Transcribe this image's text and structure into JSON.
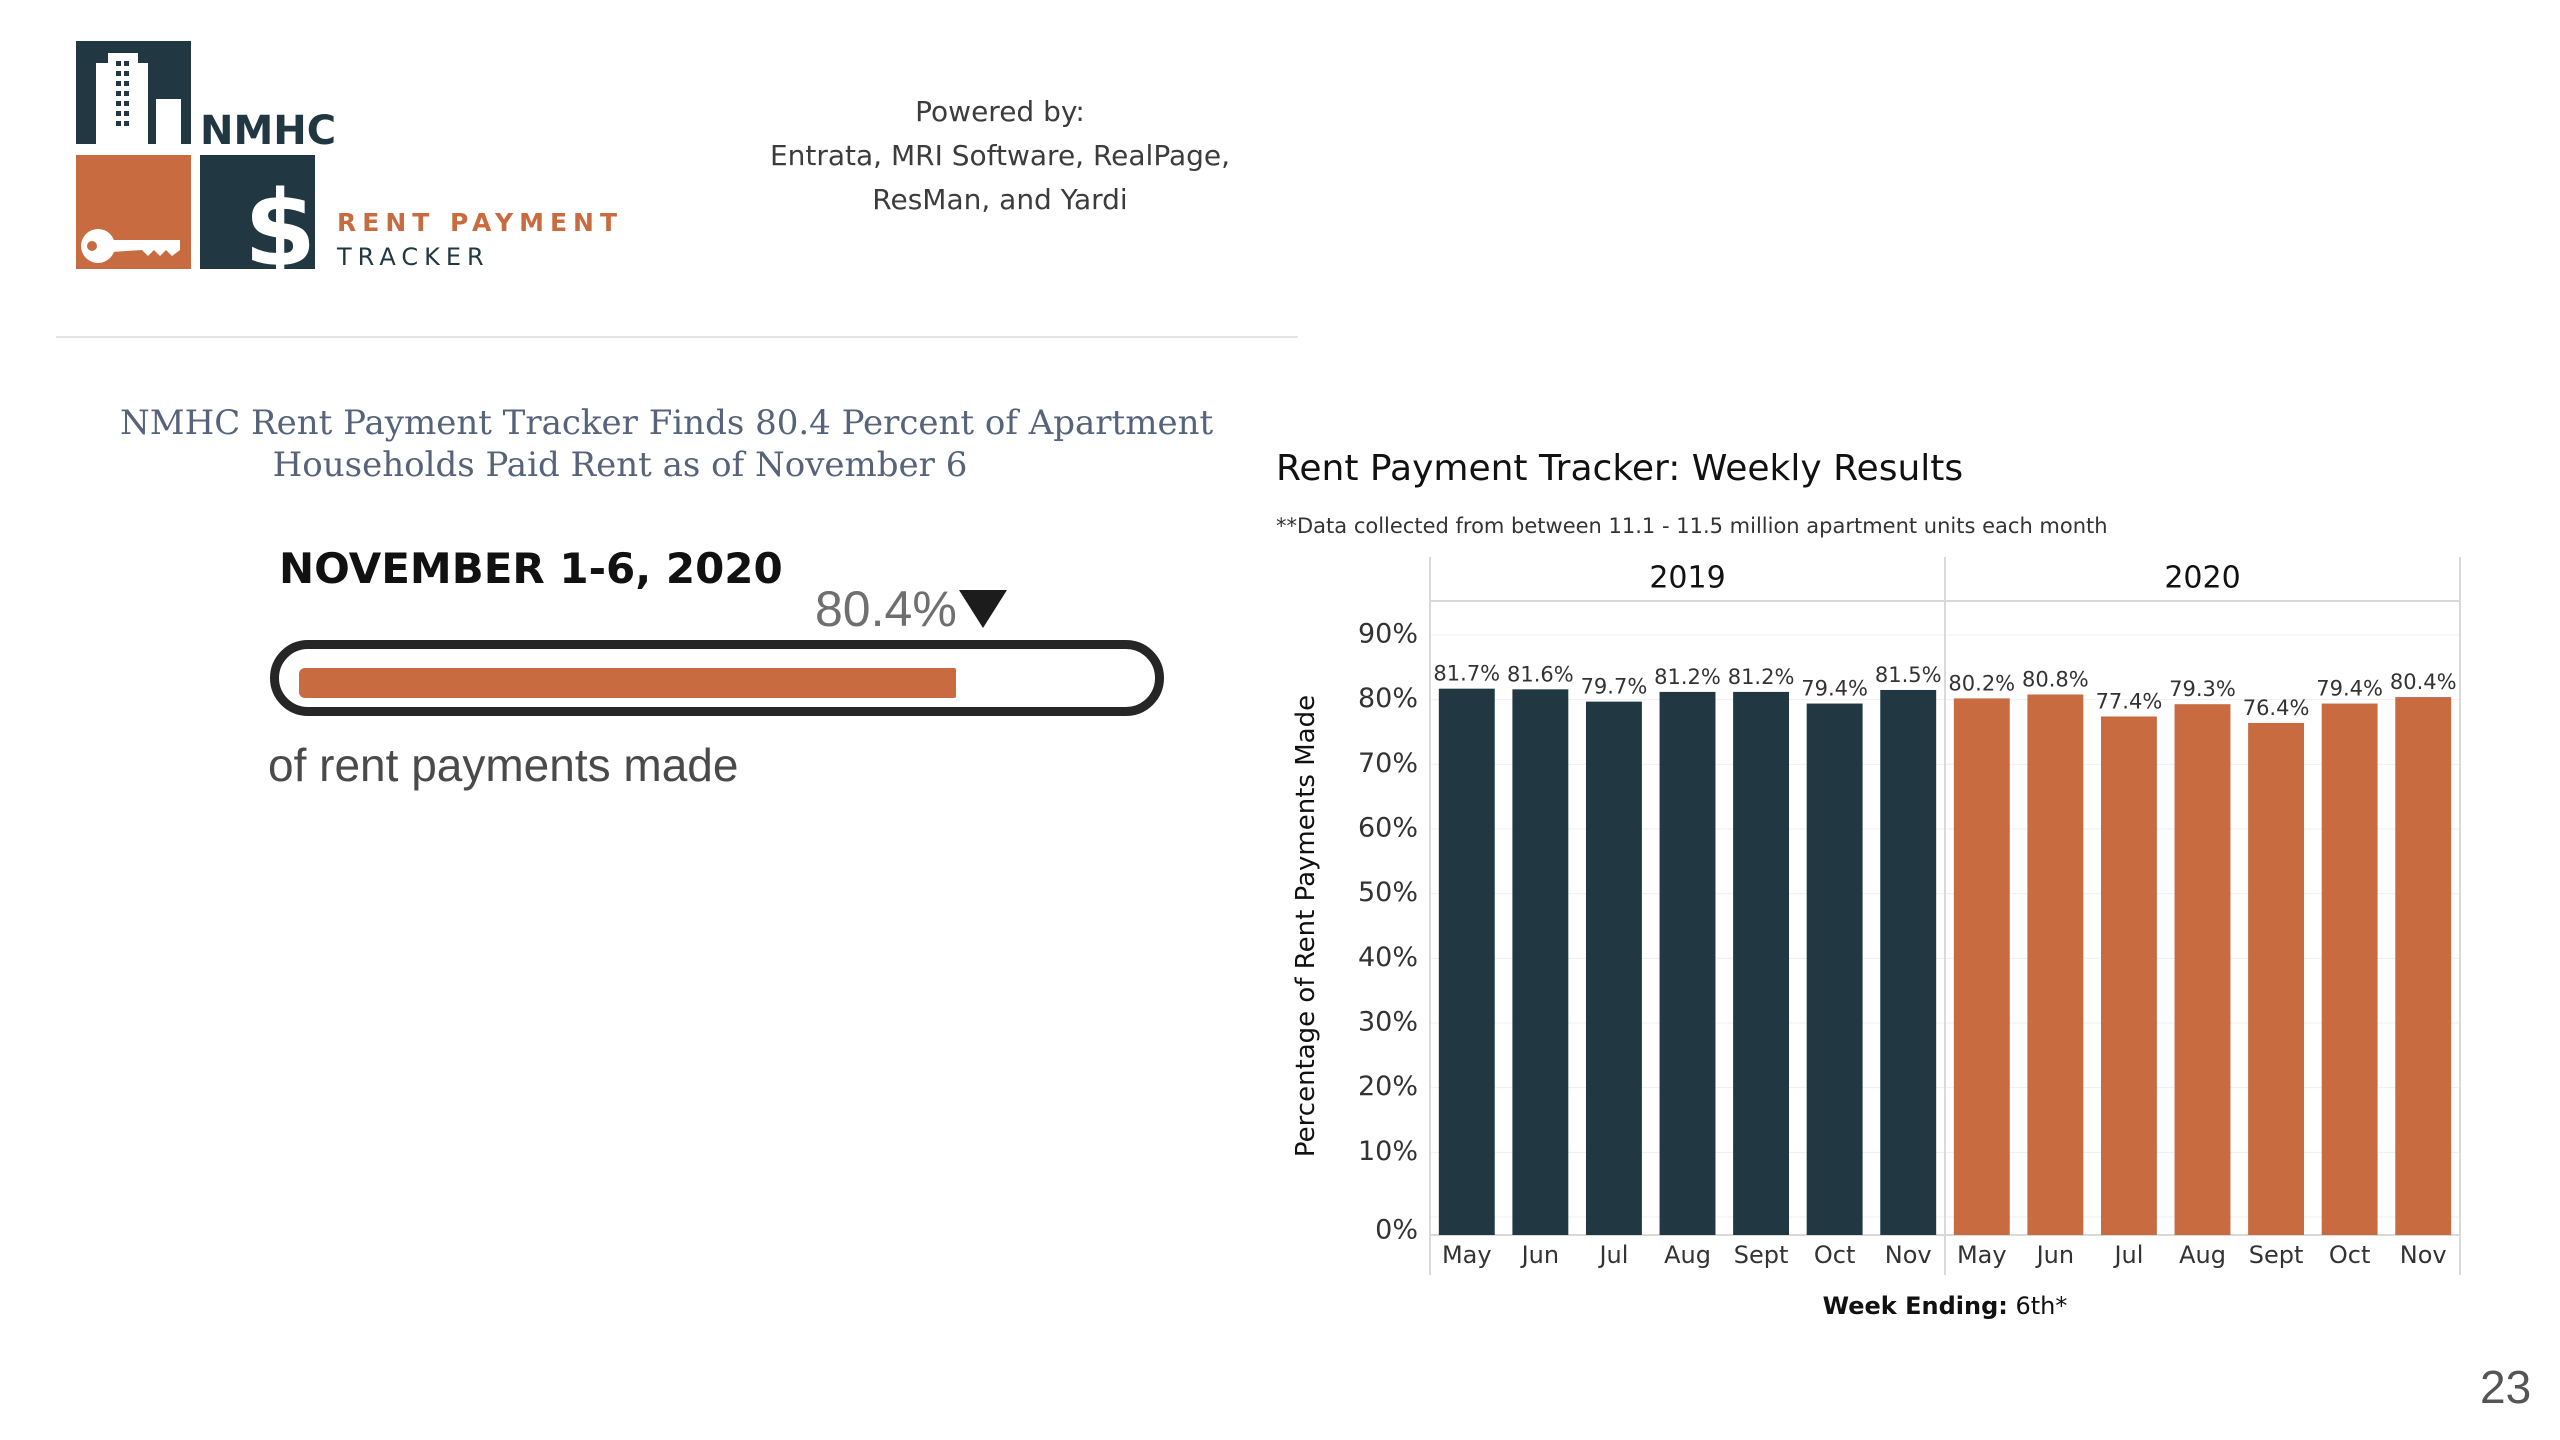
{
  "logo": {
    "org": "NMHC",
    "product_line1": "RENT PAYMENT",
    "product_line2": "TRACKER",
    "colors": {
      "navy": "#213843",
      "orange": "#c86b40"
    }
  },
  "powered_by": {
    "label": "Powered by:",
    "line1": "Entrata, MRI Software, RealPage,",
    "line2": "ResMan, and Yardi"
  },
  "headline": {
    "line1": "NMHC Rent Payment Tracker Finds 80.4 Percent of Apartment",
    "line2": "Households Paid Rent as of November 6"
  },
  "progress": {
    "period": "NOVEMBER 1-6, 2020",
    "value_label": "80.4%",
    "value": 0.804,
    "caption": "of rent payments made",
    "color": "#c86b40"
  },
  "page_number": "23",
  "chart_data": {
    "type": "bar",
    "title": "Rent Payment Tracker: Weekly Results",
    "subtitle": "**Data collected from between 11.1 - 11.5 million apartment units each month",
    "ylabel": "Percentage of Rent Payments Made",
    "xlabel_bold": "Week Ending:",
    "xlabel_rest": " 6th*",
    "y_ticks": [
      "0%",
      "10%",
      "20%",
      "30%",
      "40%",
      "50%",
      "60%",
      "70%",
      "80%",
      "90%"
    ],
    "ylim": [
      0,
      90
    ],
    "grid": true,
    "panels": [
      {
        "name": "2019",
        "color": "#213843",
        "categories": [
          "May",
          "Jun",
          "Jul",
          "Aug",
          "Sept",
          "Oct",
          "Nov"
        ],
        "values": [
          81.7,
          81.6,
          79.7,
          81.2,
          81.2,
          79.4,
          81.5
        ],
        "labels": [
          "81.7%",
          "81.6%",
          "79.7%",
          "81.2%",
          "81.2%",
          "79.4%",
          "81.5%"
        ]
      },
      {
        "name": "2020",
        "color": "#c86b40",
        "categories": [
          "May",
          "Jun",
          "Jul",
          "Aug",
          "Sept",
          "Oct",
          "Nov"
        ],
        "values": [
          80.2,
          80.8,
          77.4,
          79.3,
          76.4,
          79.4,
          80.4
        ],
        "labels": [
          "80.2%",
          "80.8%",
          "77.4%",
          "79.3%",
          "76.4%",
          "79.4%",
          "80.4%"
        ]
      }
    ]
  }
}
